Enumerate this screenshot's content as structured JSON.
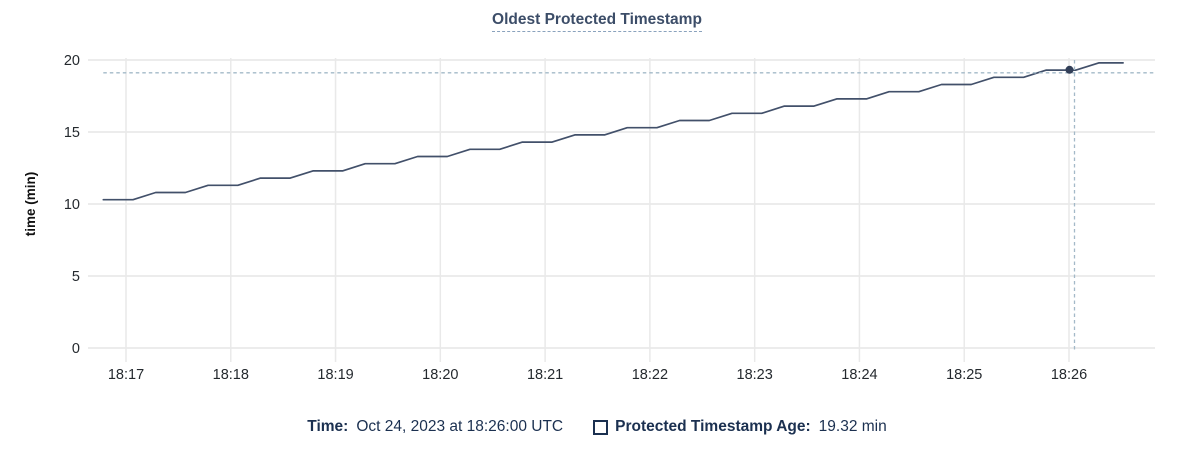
{
  "title": {
    "text": "Oldest Protected Timestamp"
  },
  "y_axis": {
    "label": "time (min)",
    "ticks": [
      20,
      15,
      10,
      5,
      0
    ]
  },
  "x_axis": {
    "ticks": [
      "18:17",
      "18:18",
      "18:19",
      "18:20",
      "18:21",
      "18:22",
      "18:23",
      "18:24",
      "18:25",
      "18:26"
    ]
  },
  "chart_data": {
    "type": "line",
    "title": "Oldest Protected Timestamp",
    "xlabel": "",
    "ylabel": "time (min)",
    "ylim": [
      0,
      20
    ],
    "y_ticks": [
      0,
      5,
      10,
      15,
      20
    ],
    "x_tick_labels": [
      "18:17",
      "18:18",
      "18:19",
      "18:20",
      "18:21",
      "18:22",
      "18:23",
      "18:24",
      "18:25",
      "18:26"
    ],
    "x_range": [
      "18:16:38",
      "18:26:49"
    ],
    "grid": true,
    "legend_position": "bottom",
    "series": [
      {
        "name": "Protected Timestamp Age",
        "unit": "min",
        "points": [
          [
            "18:16:47",
            10.3
          ],
          [
            "18:17:04",
            10.3
          ],
          [
            "18:17:17",
            10.8
          ],
          [
            "18:17:34",
            10.8
          ],
          [
            "18:17:47",
            11.3
          ],
          [
            "18:18:04",
            11.3
          ],
          [
            "18:18:17",
            11.8
          ],
          [
            "18:18:34",
            11.8
          ],
          [
            "18:18:47",
            12.3
          ],
          [
            "18:19:04",
            12.3
          ],
          [
            "18:19:17",
            12.8
          ],
          [
            "18:19:34",
            12.8
          ],
          [
            "18:19:47",
            13.3
          ],
          [
            "18:20:04",
            13.3
          ],
          [
            "18:20:17",
            13.8
          ],
          [
            "18:20:34",
            13.8
          ],
          [
            "18:20:47",
            14.3
          ],
          [
            "18:21:04",
            14.3
          ],
          [
            "18:21:17",
            14.8
          ],
          [
            "18:21:34",
            14.8
          ],
          [
            "18:21:47",
            15.3
          ],
          [
            "18:22:04",
            15.3
          ],
          [
            "18:22:17",
            15.8
          ],
          [
            "18:22:34",
            15.8
          ],
          [
            "18:22:47",
            16.3
          ],
          [
            "18:23:04",
            16.3
          ],
          [
            "18:23:17",
            16.8
          ],
          [
            "18:23:34",
            16.8
          ],
          [
            "18:23:47",
            17.3
          ],
          [
            "18:24:04",
            17.3
          ],
          [
            "18:24:17",
            17.8
          ],
          [
            "18:24:34",
            17.8
          ],
          [
            "18:24:47",
            18.3
          ],
          [
            "18:25:04",
            18.3
          ],
          [
            "18:25:17",
            18.8
          ],
          [
            "18:25:34",
            18.8
          ],
          [
            "18:25:47",
            19.3
          ],
          [
            "18:26:04",
            19.3
          ],
          [
            "18:26:17",
            19.8
          ],
          [
            "18:26:31",
            19.8
          ]
        ]
      }
    ],
    "hover_point": {
      "time": "18:26:00",
      "value": 19.32
    }
  },
  "legend": {
    "time_label": "Time:",
    "time_value": "Oct 24, 2023 at 18:26:00 UTC",
    "series_label": "Protected Timestamp Age:",
    "series_value": "19.32 min"
  },
  "colors": {
    "title": "#3c4d68",
    "title_underline": "#8aa2bd",
    "line": "#42506a",
    "dot": "#323f58",
    "crosshair": "#a3b9c8",
    "grid_h": "#ececec",
    "grid_v": "#e9e9e9",
    "tick_text": "#24292e",
    "axis_label_text": "#111111",
    "legend_text": "#1b3050"
  }
}
